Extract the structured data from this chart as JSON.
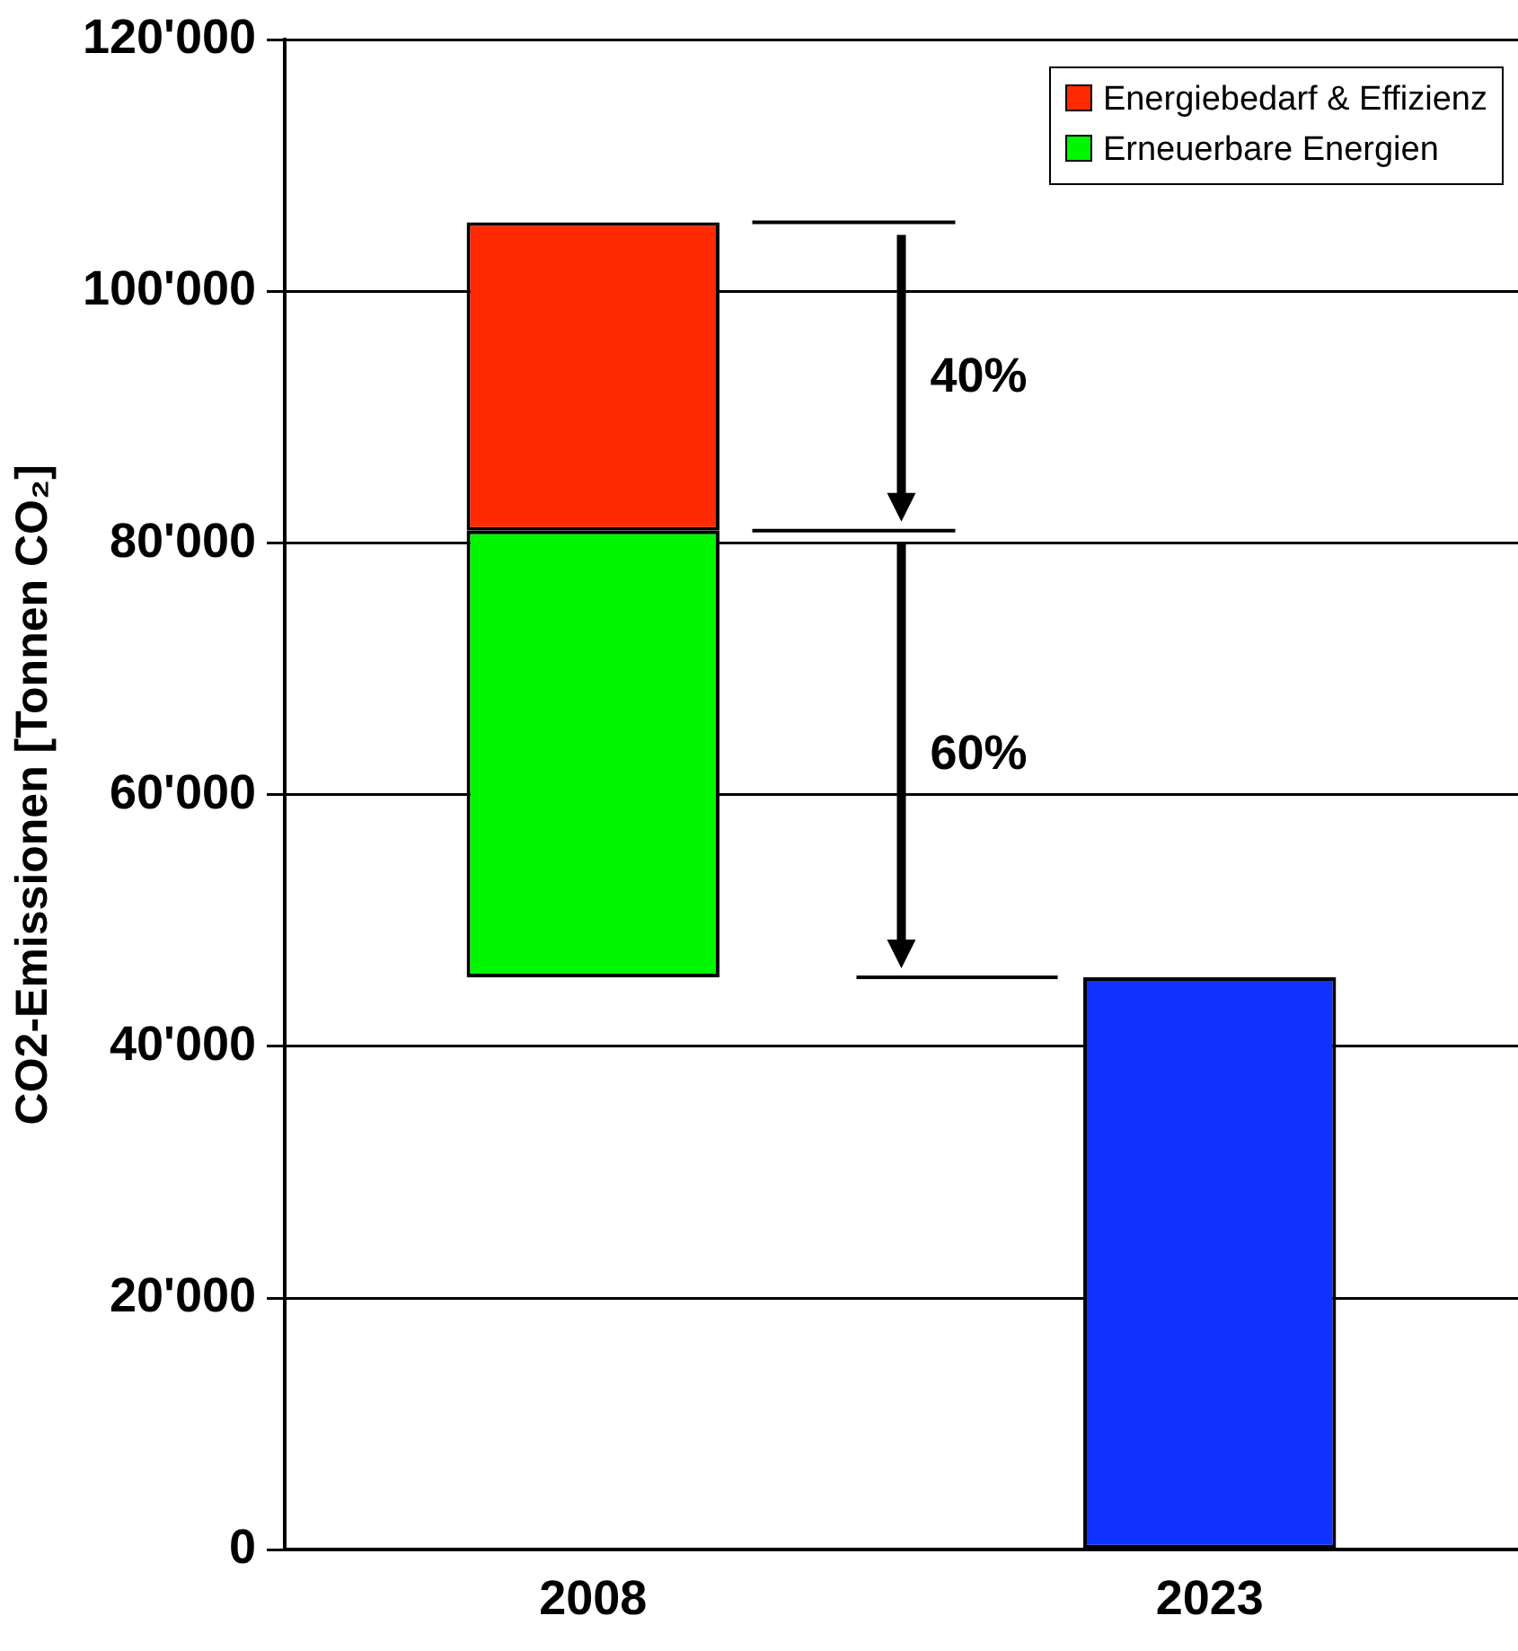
{
  "chart_data": {
    "type": "bar",
    "ylabel": "CO2-Emissionen [Tonnen CO₂]",
    "categories": [
      "2008",
      "2023"
    ],
    "series": [
      {
        "name": "Energiebedarf & Effizienz",
        "color": "#ff2a00",
        "values": [
          24500,
          null
        ],
        "base": [
          81000,
          null
        ]
      },
      {
        "name": "Erneuerbare Energien",
        "color": "#00f700",
        "values": [
          35500,
          null
        ],
        "base": [
          45500,
          null
        ]
      },
      {
        "color": "#0f32ff",
        "values": [
          null,
          45500
        ],
        "base": [
          null,
          0
        ]
      }
    ],
    "ylim": [
      0,
      120000
    ],
    "yticks": [
      {
        "value": 0,
        "label": "0"
      },
      {
        "value": 20000,
        "label": "20'000"
      },
      {
        "value": 40000,
        "label": "40'000"
      },
      {
        "value": 60000,
        "label": "60'000"
      },
      {
        "value": 80000,
        "label": "80'000"
      },
      {
        "value": 100000,
        "label": "100'000"
      },
      {
        "value": 120000,
        "label": "120'000"
      }
    ],
    "ref_lines": [
      {
        "axis": "y",
        "value": 105500
      },
      {
        "axis": "y",
        "value": 81000
      },
      {
        "axis": "y",
        "value": 45500
      }
    ],
    "grid": "y",
    "legend": "top right",
    "annotations": [
      "40%",
      "60%"
    ]
  }
}
